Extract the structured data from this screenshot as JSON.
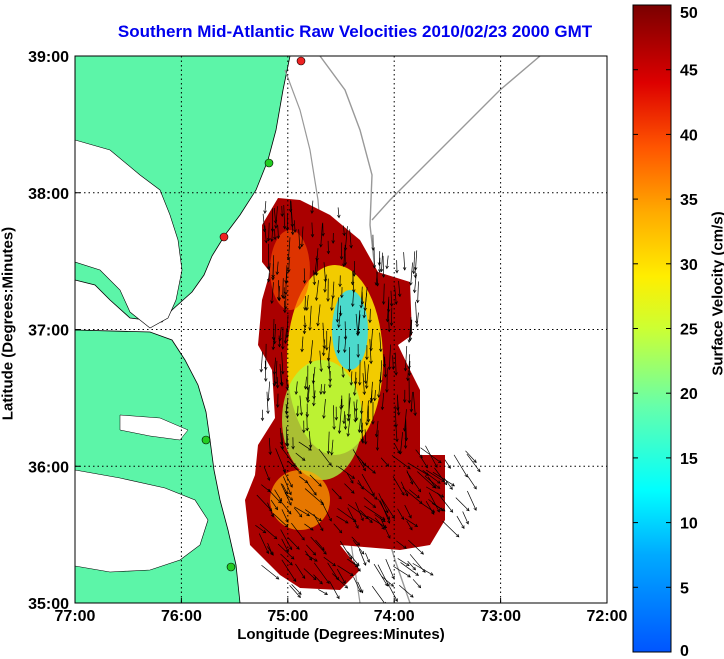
{
  "title": "Southern Mid-Atlantic Raw Velocities 2010/02/23 2000 GMT",
  "chart_data": {
    "type": "heatmap",
    "title": "Southern Mid-Atlantic Raw Velocities 2010/02/23 2000 GMT",
    "xlabel": "Longitude (Degrees:Minutes)",
    "ylabel": "Latitude (Degrees:Minutes)",
    "x_ticks": [
      "77:00",
      "76:00",
      "75:00",
      "74:00",
      "73:00",
      "72:00"
    ],
    "y_ticks": [
      "39:00",
      "38:00",
      "37:00",
      "36:00",
      "35:00"
    ],
    "xlim_deg_west": [
      77,
      72
    ],
    "ylim_deg_north": [
      35,
      39
    ],
    "grid": "dotted",
    "colorbar": {
      "label": "Surface Velocity (cm/s)",
      "ticks": [
        "50",
        "45",
        "40",
        "35",
        "30",
        "25",
        "20",
        "15",
        "10",
        "5",
        "0"
      ],
      "range": [
        0,
        50
      ],
      "placement": "right"
    },
    "land_color": "#5cf5a8",
    "station_colors": [
      "#22cc22",
      "#ee2222"
    ]
  }
}
